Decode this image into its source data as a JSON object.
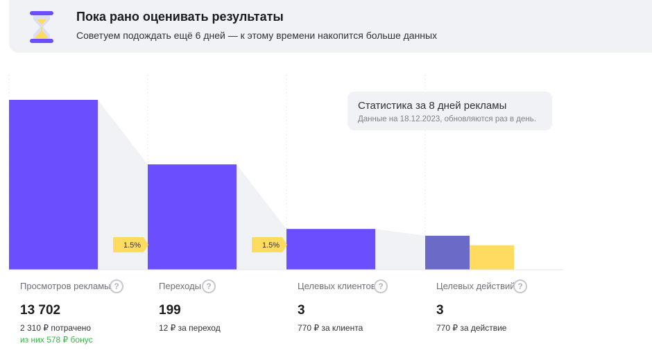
{
  "banner": {
    "title": "Пока рано оценивать результаты",
    "subtitle": "Советуем подождать ещё 6 дней — к этому времени накопится больше данных",
    "icon": "hourglass-icon"
  },
  "stats_card": {
    "title": "Статистика за 8 дней рекламы",
    "subtitle": "Данные на 18.12.2023, обновляются раз в день."
  },
  "chart_data": {
    "type": "bar",
    "categories": [
      "Просмотров рекламы",
      "Переходы",
      "Целевых клиентов",
      "Целевых действий"
    ],
    "values": [
      13702,
      199,
      3,
      3
    ],
    "conversion_rates": [
      "1.5%",
      "1.5%"
    ],
    "colors": {
      "bar": "#6b4efd",
      "actions_bar": "#6b6bc7",
      "actions_secondary": "#ffdc60",
      "funnel": "#f1f2f5",
      "rate_badge": "#ffdc60"
    }
  },
  "metrics": [
    {
      "label": "Просмотров рекламы",
      "value": "13 702",
      "desc": "2 310 ₽ потрачено",
      "bonus": "из них 578 ₽ бонус"
    },
    {
      "label": "Переходы",
      "value": "199",
      "desc": "12 ₽ за переход"
    },
    {
      "label": "Целевых клиентов",
      "value": "3",
      "desc": "770 ₽ за клиента"
    },
    {
      "label": "Целевых действий",
      "value": "3",
      "desc": "770 ₽ за действие"
    }
  ],
  "help_glyph": "?"
}
